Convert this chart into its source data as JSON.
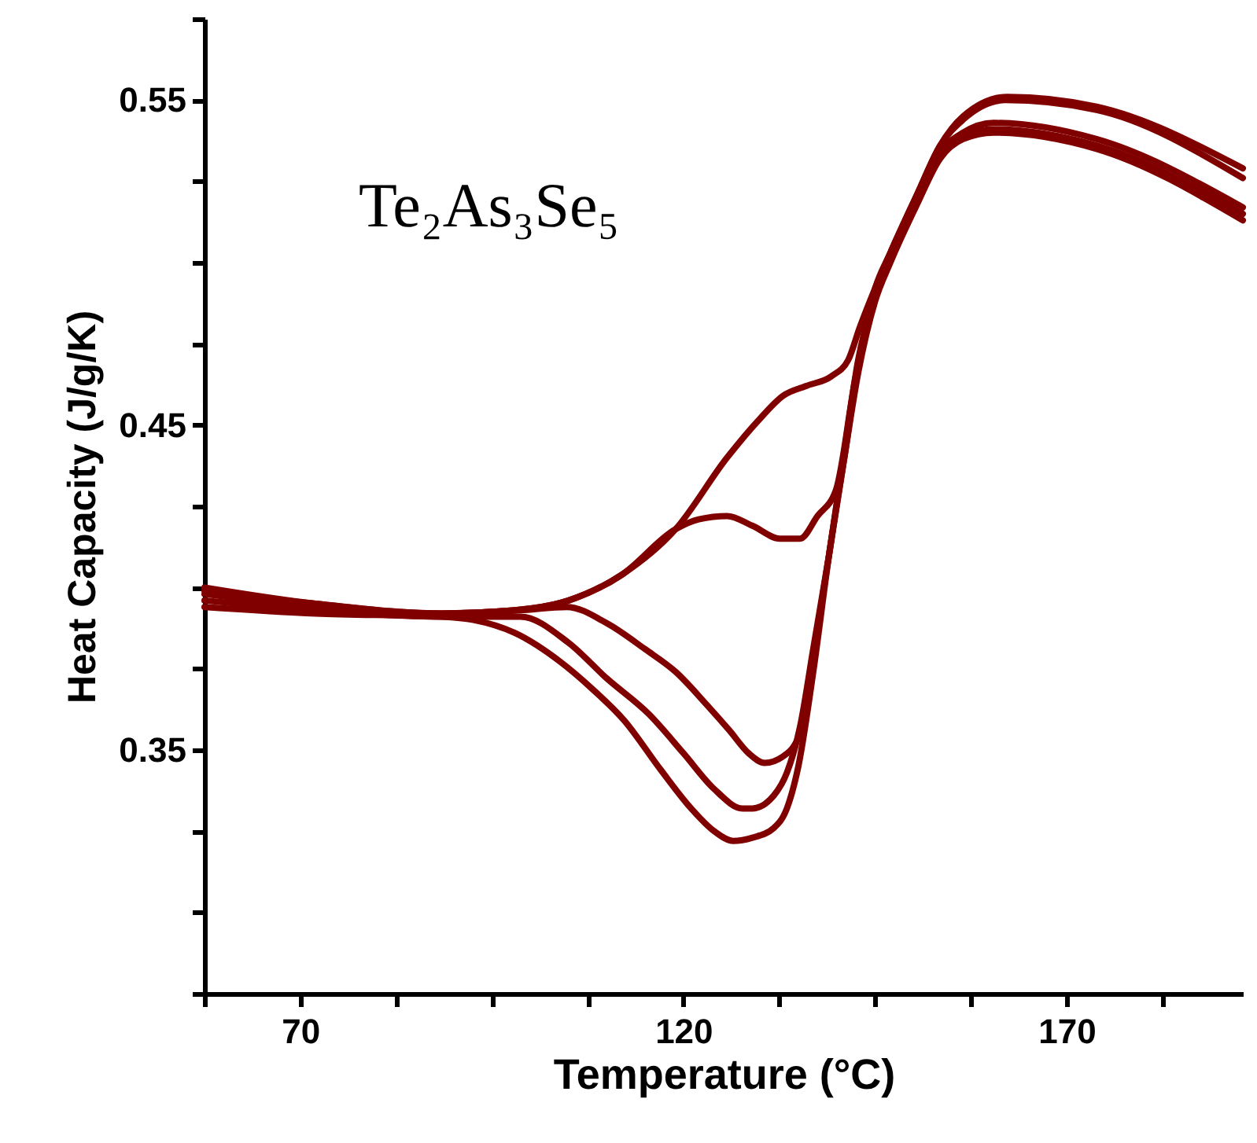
{
  "chart_data": {
    "type": "line",
    "xlabel": "Temperature (°C)",
    "ylabel": "Heat Capacity (J/g/K)",
    "annotations": [
      "Te₂As₃Se₅"
    ],
    "xlim": [
      57.5,
      193
    ],
    "xticks": [
      {
        "value": 57.5,
        "label": null
      },
      70,
      {
        "value": 82.5,
        "label": null
      },
      {
        "value": 95,
        "label": null
      },
      {
        "value": 107.5,
        "label": null
      },
      120,
      {
        "value": 132.5,
        "label": null
      },
      {
        "value": 145,
        "label": null
      },
      {
        "value": 157.5,
        "label": null
      },
      170,
      {
        "value": 182.5,
        "label": null
      }
    ],
    "ylim": [
      0.275,
      0.575
    ],
    "yticks": [
      {
        "value": 0.275,
        "label": null
      },
      {
        "value": 0.3,
        "label": null
      },
      {
        "value": 0.325,
        "label": null
      },
      0.35,
      {
        "value": 0.375,
        "label": null
      },
      {
        "value": 0.4,
        "label": null
      },
      {
        "value": 0.425,
        "label": null
      },
      0.45,
      {
        "value": 0.475,
        "label": null
      },
      {
        "value": 0.5,
        "label": null
      },
      {
        "value": 0.525,
        "label": null
      },
      0.55,
      {
        "value": 0.575,
        "label": null
      }
    ],
    "series": [
      {
        "color": "#800000",
        "x": [
          57.5,
          72,
          88.5,
          98,
          105,
          112,
          119,
          125.7,
          130,
          133,
          136,
          139.3,
          141.5,
          143,
          145,
          147,
          150.5,
          153.5,
          156.5,
          162.3,
          173.9,
          193
        ],
        "values": [
          0.4,
          0.395,
          0.392,
          0.393,
          0.396,
          0.404,
          0.418,
          0.44,
          0.452,
          0.459,
          0.462,
          0.465,
          0.47,
          0.48,
          0.492,
          0.503,
          0.521,
          0.536,
          0.545,
          0.551,
          0.548,
          0.529
        ]
      },
      {
        "color": "#800000",
        "x": [
          57.5,
          72,
          88.5,
          98,
          105,
          112,
          119,
          122,
          125.7,
          129,
          132.6,
          135.2,
          137.5,
          139.9,
          142.4,
          145,
          147,
          150.5,
          153.5,
          156.5,
          162,
          173.9,
          193
        ],
        "values": [
          0.399,
          0.395,
          0.392,
          0.393,
          0.396,
          0.404,
          0.418,
          0.421,
          0.422,
          0.419,
          0.415,
          0.415,
          0.422,
          0.43,
          0.464,
          0.492,
          0.503,
          0.521,
          0.536,
          0.544,
          0.55,
          0.547,
          0.526
        ]
      },
      {
        "color": "#800000",
        "x": [
          57.5,
          72,
          88.5,
          98.7,
          104.8,
          110,
          115,
          119,
          123,
          126,
          128.5,
          130.6,
          133,
          135.2,
          137,
          139,
          141,
          142.8,
          145,
          147,
          150.5,
          153.5,
          156.5,
          160.5,
          173.9,
          193
        ],
        "values": [
          0.398,
          0.394,
          0.392,
          0.393,
          0.394,
          0.389,
          0.381,
          0.374,
          0.364,
          0.356,
          0.349,
          0.346,
          0.348,
          0.355,
          0.38,
          0.41,
          0.442,
          0.47,
          0.49,
          0.502,
          0.52,
          0.534,
          0.54,
          0.543,
          0.538,
          0.517
        ]
      },
      {
        "color": "#800000",
        "x": [
          57.5,
          72,
          88.5,
          95,
          98.7,
          105,
          110,
          115.5,
          120,
          124,
          127.7,
          129,
          131.8,
          133.5,
          135.2,
          137,
          139,
          141,
          142.8,
          145,
          147,
          150.5,
          153.5,
          156.5,
          160.5,
          173.9,
          193
        ],
        "values": [
          0.396,
          0.393,
          0.391,
          0.391,
          0.391,
          0.383,
          0.372,
          0.361,
          0.349,
          0.338,
          0.332,
          0.332,
          0.336,
          0.343,
          0.357,
          0.382,
          0.41,
          0.44,
          0.468,
          0.489,
          0.501,
          0.519,
          0.533,
          0.539,
          0.541,
          0.536,
          0.515
        ]
      },
      {
        "color": "#800000",
        "x": [
          57.5,
          72,
          88.5,
          92.6,
          98,
          104,
          108,
          112.3,
          117,
          121,
          124,
          126.5,
          129,
          131.8,
          133.5,
          135,
          137,
          139,
          141,
          142.8,
          145,
          147,
          150.5,
          153.5,
          156.5,
          160.5,
          173.9,
          193
        ],
        "values": [
          0.394,
          0.392,
          0.391,
          0.39,
          0.386,
          0.377,
          0.369,
          0.359,
          0.344,
          0.332,
          0.325,
          0.322,
          0.323,
          0.326,
          0.332,
          0.345,
          0.375,
          0.41,
          0.44,
          0.466,
          0.488,
          0.5,
          0.518,
          0.532,
          0.538,
          0.54,
          0.535,
          0.513
        ]
      }
    ]
  }
}
